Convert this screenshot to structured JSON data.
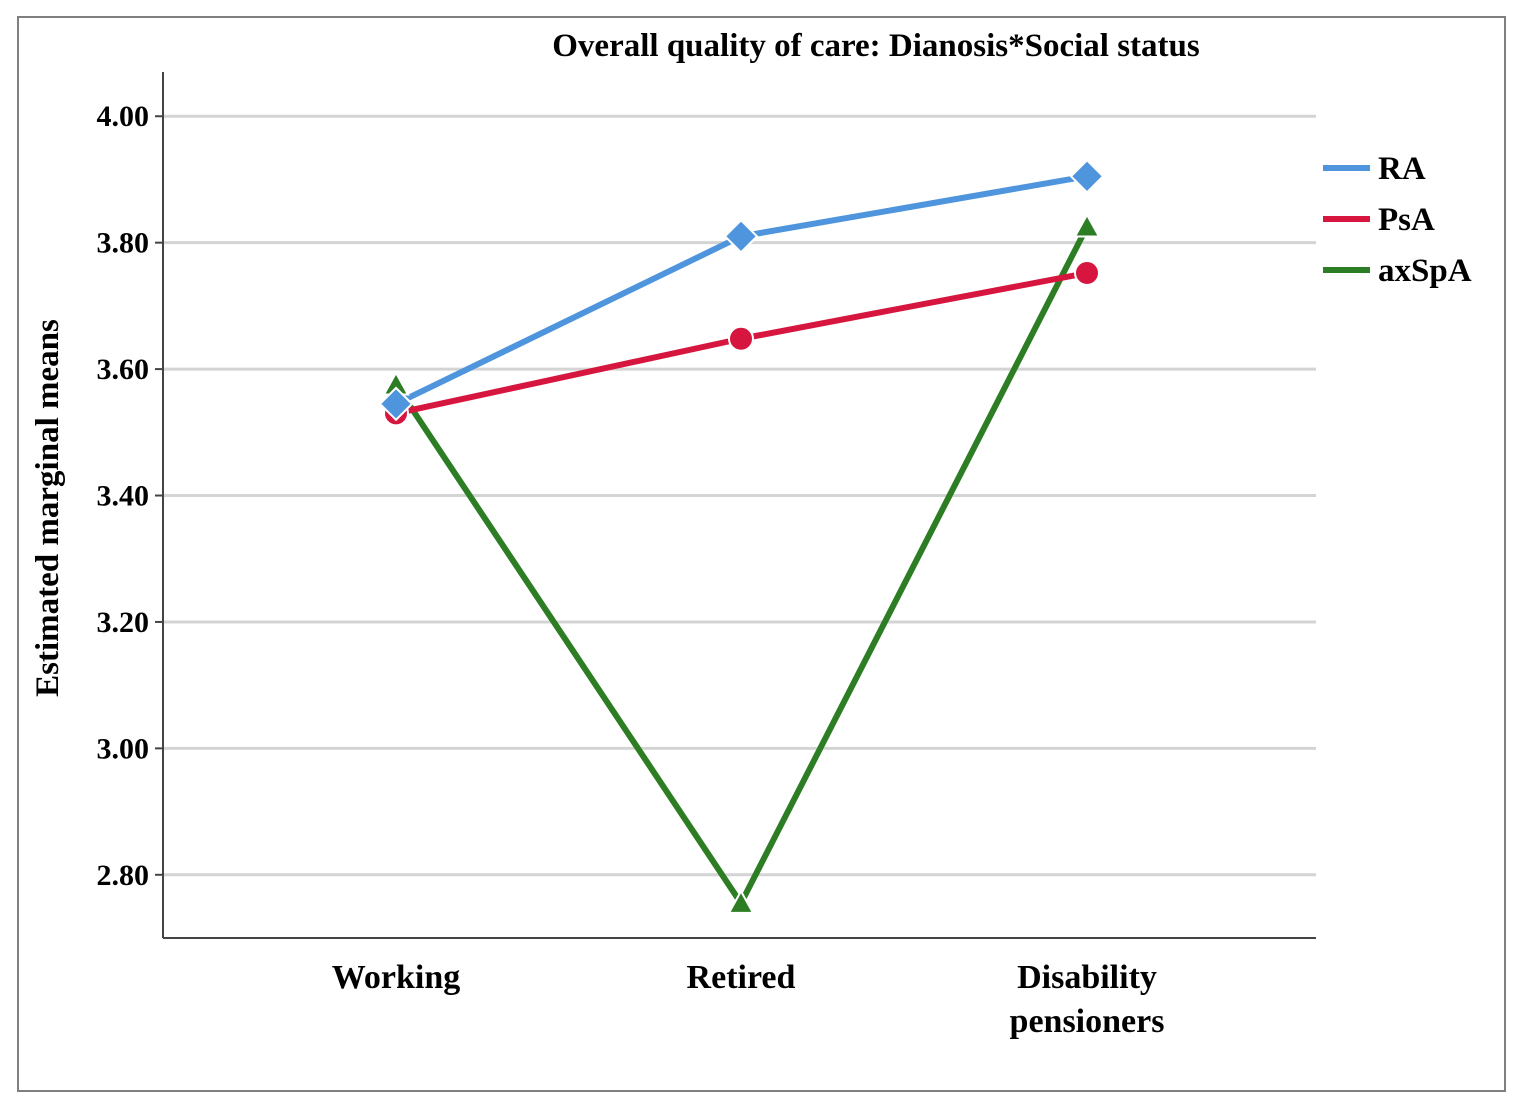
{
  "chart_data": {
    "type": "line",
    "title": "Overall quality of care: Dianosis*Social status",
    "xlabel": "",
    "ylabel": "Estimated marginal means",
    "categories": [
      [
        "Working"
      ],
      [
        "Retired"
      ],
      [
        "Disability",
        "pensioners"
      ]
    ],
    "ylim": [
      2.7,
      4.07
    ],
    "yticks": [
      "4.00",
      "3.80",
      "3.60",
      "3.40",
      "3.20",
      "3.00",
      "2.80"
    ],
    "grid": true,
    "legend_position": "right",
    "series": [
      {
        "name": "RA",
        "values": [
          3.545,
          3.81,
          3.905
        ],
        "color": "#4f95dd",
        "marker": "diamond"
      },
      {
        "name": "PsA",
        "values": [
          3.53,
          3.648,
          3.752
        ],
        "color": "#d6163f",
        "marker": "circle"
      },
      {
        "name": "axSpA",
        "values": [
          3.575,
          2.755,
          3.825
        ],
        "color": "#2c7d23",
        "marker": "triangle"
      }
    ]
  }
}
